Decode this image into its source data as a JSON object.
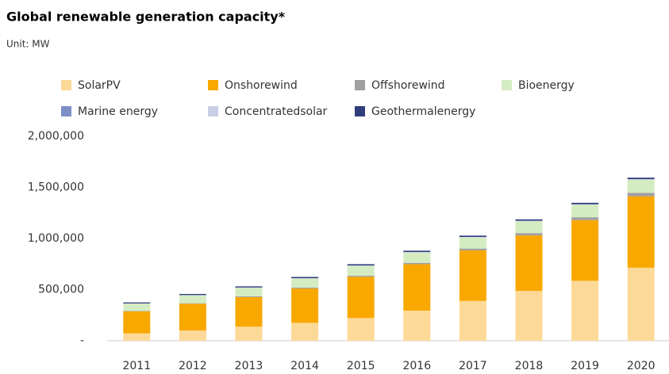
{
  "chart_data": {
    "type": "stacked-bar",
    "title": "Global renewable generation capacity*",
    "subtitle": "Unit: MW",
    "categories": [
      "2011",
      "2012",
      "2013",
      "2014",
      "2015",
      "2016",
      "2017",
      "2018",
      "2019",
      "2020"
    ],
    "series": [
      {
        "name": "SolarPV",
        "color": "#fdd997",
        "values": [
          72000,
          100000,
          137000,
          175000,
          222000,
          294000,
          389000,
          487000,
          586000,
          714000
        ]
      },
      {
        "name": "Onshorewind",
        "color": "#f9a800",
        "values": [
          215000,
          262000,
          290000,
          336000,
          404000,
          454000,
          495000,
          543000,
          594000,
          699000
        ]
      },
      {
        "name": "Offshorewind",
        "color": "#a0a0a0",
        "values": [
          4000,
          5000,
          7000,
          8500,
          11500,
          14000,
          18000,
          23000,
          28000,
          34000
        ]
      },
      {
        "name": "Bioenergy",
        "color": "#d5ecc2",
        "values": [
          72000,
          77000,
          83000,
          88000,
          94000,
          101000,
          108000,
          115000,
          121000,
          127000
        ]
      },
      {
        "name": "Marine energy",
        "color": "#7c8fc6",
        "values": [
          500,
          500,
          500,
          500,
          500,
          500,
          500,
          500,
          500,
          500
        ]
      },
      {
        "name": "Concentratedsolar",
        "color": "#c9cfe6",
        "values": [
          1300,
          2500,
          3500,
          4300,
          4700,
          4800,
          5000,
          5500,
          6100,
          6500
        ]
      },
      {
        "name": "Geothermalenergy",
        "color": "#2f3d7a",
        "values": [
          10000,
          10500,
          11000,
          11500,
          12000,
          12300,
          12700,
          13200,
          13900,
          14000
        ]
      }
    ],
    "ylim": [
      0,
      2000000
    ],
    "yticks": [
      {
        "value": 0,
        "label": "-"
      },
      {
        "value": 500000,
        "label": "500,000"
      },
      {
        "value": 1000000,
        "label": "1,000,000"
      },
      {
        "value": 1500000,
        "label": "1,500,000"
      },
      {
        "value": 2000000,
        "label": "2,000,000"
      }
    ],
    "grid": false
  }
}
